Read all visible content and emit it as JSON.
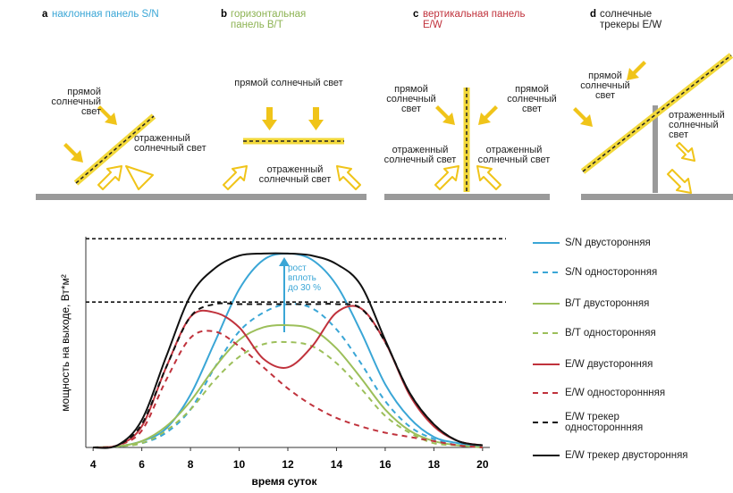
{
  "diagrams": [
    {
      "letter": "a",
      "title": "наклонная панель S/N",
      "color": "#3aa6d6",
      "labels": [
        "прямой солнечный свет",
        "отраженный солнечный свет"
      ]
    },
    {
      "letter": "b",
      "title": "горизонтальная панель В/Т",
      "color": "#8db353",
      "labels": [
        "прямой солнечный свет",
        "отраженный солнечный свет"
      ]
    },
    {
      "letter": "c",
      "title": "вертикальная панель E/W",
      "color": "#c0323c",
      "labels": [
        "прямой солнечный свет",
        "прямой солнечный свет",
        "отраженный солнечный свет",
        "отраженный солнечный свет"
      ]
    },
    {
      "letter": "d",
      "title": "солнечные трекеры E/W",
      "color": "#222222",
      "labels": [
        "прямой солнечный свет",
        "отраженный солнечный свет"
      ]
    }
  ],
  "chart_data": {
    "type": "line",
    "x_label": "время суток",
    "y_label": "мощность на выходе, Вт*м²",
    "annotation": [
      "рост",
      "вплоть",
      "до 30 %"
    ],
    "x": [
      4,
      5,
      6,
      7,
      8,
      9,
      10,
      11,
      12,
      13,
      14,
      15,
      16,
      17,
      18,
      19,
      20
    ],
    "xlim": [
      3.7,
      20.3
    ],
    "xticks": [
      4,
      6,
      8,
      10,
      12,
      14,
      16,
      18,
      20
    ],
    "ylim": [
      0,
      100
    ],
    "reference_lines": [
      99,
      69
    ],
    "series": [
      {
        "name": "S/N двусторонняя",
        "color": "#3aa6d6",
        "dashed": false,
        "values": [
          0,
          0.5,
          3,
          9,
          25,
          50,
          75,
          89,
          92,
          89,
          77,
          55,
          30,
          14,
          5,
          2,
          0
        ]
      },
      {
        "name": "S/N односторонняя",
        "color": "#3aa6d6",
        "dashed": true,
        "values": [
          0,
          0.5,
          2,
          7,
          18,
          38,
          55,
          64,
          68,
          66,
          56,
          40,
          22,
          10,
          4,
          1,
          0
        ]
      },
      {
        "name": "B/T двусторонняя",
        "color": "#9cbf5a",
        "dashed": false,
        "values": [
          0,
          0.5,
          3,
          10,
          22,
          38,
          51,
          57,
          58,
          56,
          47,
          33,
          18,
          8,
          3,
          1,
          0
        ]
      },
      {
        "name": "B/T односторонняя",
        "color": "#9cbf5a",
        "dashed": true,
        "values": [
          0,
          0.5,
          2,
          8,
          18,
          32,
          43,
          49,
          50,
          48,
          40,
          28,
          15,
          7,
          2,
          1,
          0
        ]
      },
      {
        "name": "E/W двусторонняя",
        "color": "#c0323c",
        "dashed": false,
        "values": [
          0,
          1,
          10,
          38,
          62,
          64,
          57,
          42,
          38,
          48,
          64,
          66,
          50,
          25,
          10,
          3,
          1
        ]
      },
      {
        "name": "E/W одностороннняя",
        "color": "#c0323c",
        "dashed": true,
        "values": [
          0,
          1,
          8,
          32,
          52,
          55,
          48,
          38,
          28,
          20,
          14,
          10,
          7,
          5,
          3,
          1,
          0
        ]
      },
      {
        "name": "E/W трекер одностороннняя",
        "color": "#111111",
        "dashed": true,
        "values": [
          0,
          1,
          11,
          38,
          62,
          68,
          68,
          68,
          68,
          68,
          68,
          66,
          50,
          26,
          11,
          3,
          1
        ]
      },
      {
        "name": "E/W трекер двусторонняя",
        "color": "#111111",
        "dashed": false,
        "values": [
          0,
          1,
          13,
          43,
          72,
          85,
          91,
          92,
          92,
          91,
          87,
          77,
          51,
          26,
          11,
          3,
          1
        ]
      }
    ]
  }
}
